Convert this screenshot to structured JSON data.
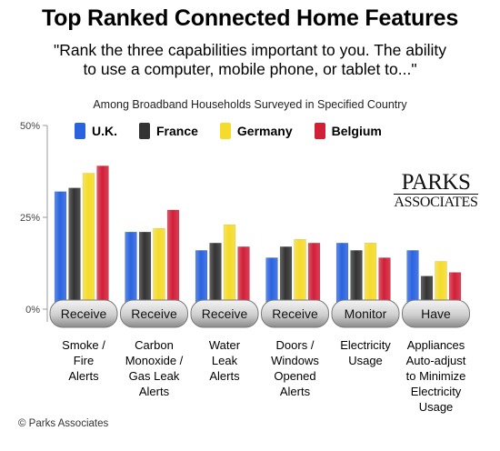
{
  "title": "Top Ranked Connected Home Features",
  "subtitle_lines": [
    "\"Rank the three capabilities important to you. The ability",
    "to use a computer, mobile phone, or tablet to...\""
  ],
  "note": "Among Broadband Households Surveyed in Specified Country",
  "brand": {
    "line1": "PARKS",
    "line2": "ASSOCIATES"
  },
  "copyright": "© Parks Associates",
  "colors": {
    "U.K.": "#2a63e0",
    "France": "#333333",
    "Germany": "#f5db2a",
    "Belgium": "#d21f38"
  },
  "chart_data": {
    "type": "bar",
    "title": "Top Ranked Connected Home Features",
    "ylabel": "",
    "xlabel": "",
    "ylim": [
      0,
      50
    ],
    "yticks": [
      "0%",
      "25%",
      "50%"
    ],
    "grid": false,
    "legend_position": "top",
    "category_verbs": [
      "Receive",
      "Receive",
      "Receive",
      "Receive",
      "Monitor",
      "Have"
    ],
    "categories": [
      [
        "Smoke /",
        "Fire",
        "Alerts"
      ],
      [
        "Carbon",
        "Monoxide /",
        "Gas Leak",
        "Alerts"
      ],
      [
        "Water",
        "Leak",
        "Alerts"
      ],
      [
        "Doors /",
        "Windows",
        "Opened",
        "Alerts"
      ],
      [
        "Electricity",
        "Usage"
      ],
      [
        "Appliances",
        "Auto-adjust",
        "to Minimize",
        "Electricity",
        "Usage"
      ]
    ],
    "series": [
      {
        "name": "U.K.",
        "values": [
          32,
          21,
          16,
          14,
          18,
          16
        ]
      },
      {
        "name": "France",
        "values": [
          33,
          21,
          18,
          17,
          16,
          9
        ]
      },
      {
        "name": "Germany",
        "values": [
          37,
          22,
          23,
          19,
          18,
          13
        ]
      },
      {
        "name": "Belgium",
        "values": [
          39,
          27,
          17,
          18,
          14,
          10
        ]
      }
    ]
  }
}
